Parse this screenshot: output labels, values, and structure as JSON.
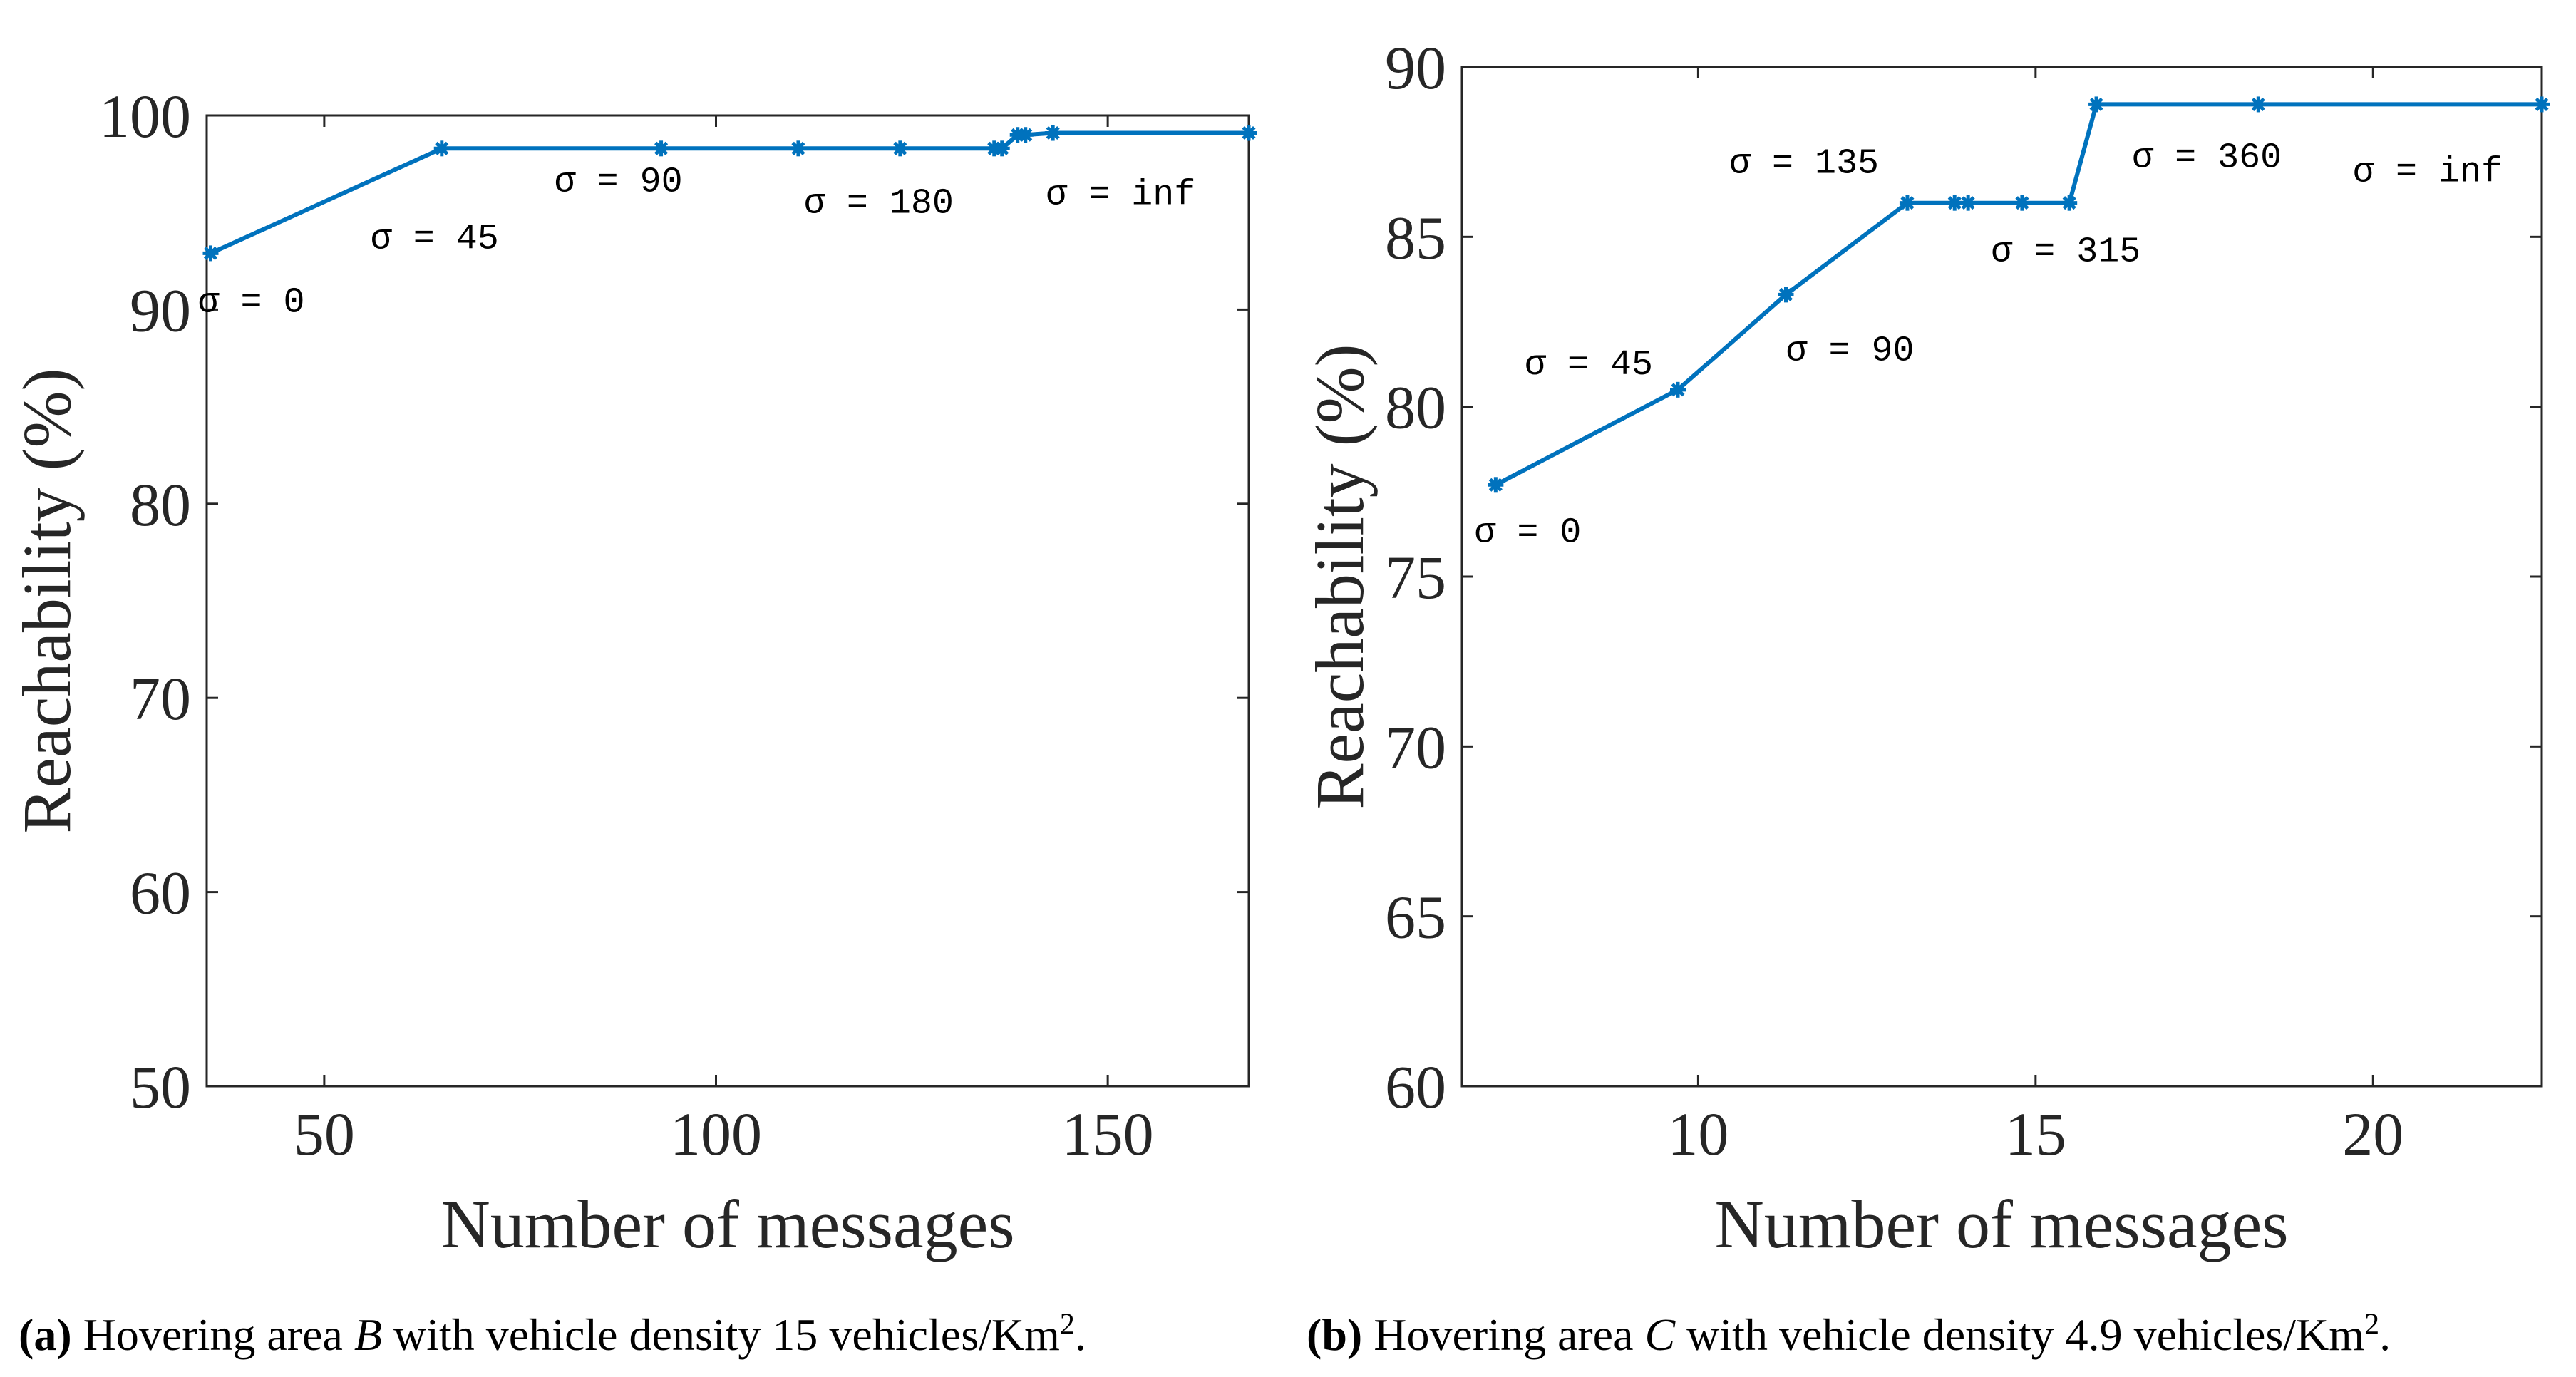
{
  "chart_data": [
    {
      "type": "line",
      "xlabel": "Number of messages",
      "ylabel": "Reachability (%)",
      "xlim": [
        35,
        168
      ],
      "ylim": [
        50,
        100
      ],
      "xticks": [
        50,
        100,
        150
      ],
      "yticks": [
        50,
        60,
        70,
        80,
        90,
        100
      ],
      "grid": false,
      "line_color": "#0072BD",
      "series": [
        {
          "x": [
            35.5,
            65,
            93,
            110.5,
            123.5,
            135.5,
            136.5,
            138.5,
            139.5,
            143,
            168
          ],
          "y": [
            92.9,
            98.3,
            98.3,
            98.3,
            98.3,
            98.3,
            98.3,
            99.0,
            99.0,
            99.1,
            99.1
          ]
        }
      ],
      "annotations": [
        {
          "text": "σ = 0",
          "x": 35.5,
          "y": 92.9
        },
        {
          "text": "σ = 45",
          "x": 65,
          "y": 98.3
        },
        {
          "text": "σ = 90",
          "x": 93,
          "y": 98.3
        },
        {
          "text": "σ = 180",
          "x": 123.5,
          "y": 98.3
        },
        {
          "text": "σ = inf",
          "x": 143,
          "y": 99.1
        }
      ],
      "caption": {
        "label": "(a)",
        "text_before": "Hovering area",
        "area": "B",
        "text_after": "with vehicle density 15 vehicles/Km",
        "superscript": "2",
        "end": "."
      }
    },
    {
      "type": "line",
      "xlabel": "Number of messages",
      "ylabel": "Reachability (%)",
      "xlim": [
        6.5,
        22.5
      ],
      "ylim": [
        60,
        90
      ],
      "xticks": [
        10,
        15,
        20
      ],
      "yticks": [
        60,
        65,
        70,
        75,
        80,
        85,
        90
      ],
      "grid": false,
      "line_color": "#0072BD",
      "series": [
        {
          "x": [
            7.0,
            9.7,
            11.3,
            13.1,
            13.8,
            14.0,
            14.8,
            15.5,
            15.9,
            18.3,
            22.5
          ],
          "y": [
            77.7,
            80.5,
            83.3,
            86.0,
            86.0,
            86.0,
            86.0,
            86.0,
            88.9,
            88.9,
            88.9
          ]
        }
      ],
      "annotations": [
        {
          "text": "σ = 0",
          "x": 7.0,
          "y": 77.7
        },
        {
          "text": "σ = 45",
          "x": 9.7,
          "y": 80.5
        },
        {
          "text": "σ = 90",
          "x": 11.3,
          "y": 83.3
        },
        {
          "text": "σ = 135",
          "x": 13.1,
          "y": 86.0
        },
        {
          "text": "σ = 315",
          "x": 15.5,
          "y": 86.0
        },
        {
          "text": "σ = 360",
          "x": 15.9,
          "y": 88.9
        },
        {
          "text": "σ = inf",
          "x": 22.5,
          "y": 88.9
        }
      ],
      "caption": {
        "label": "(b)",
        "text_before": "Hovering area",
        "area": "C",
        "text_after": "with vehicle density 4.9 vehicles/Km",
        "superscript": "2",
        "end": "."
      }
    }
  ]
}
